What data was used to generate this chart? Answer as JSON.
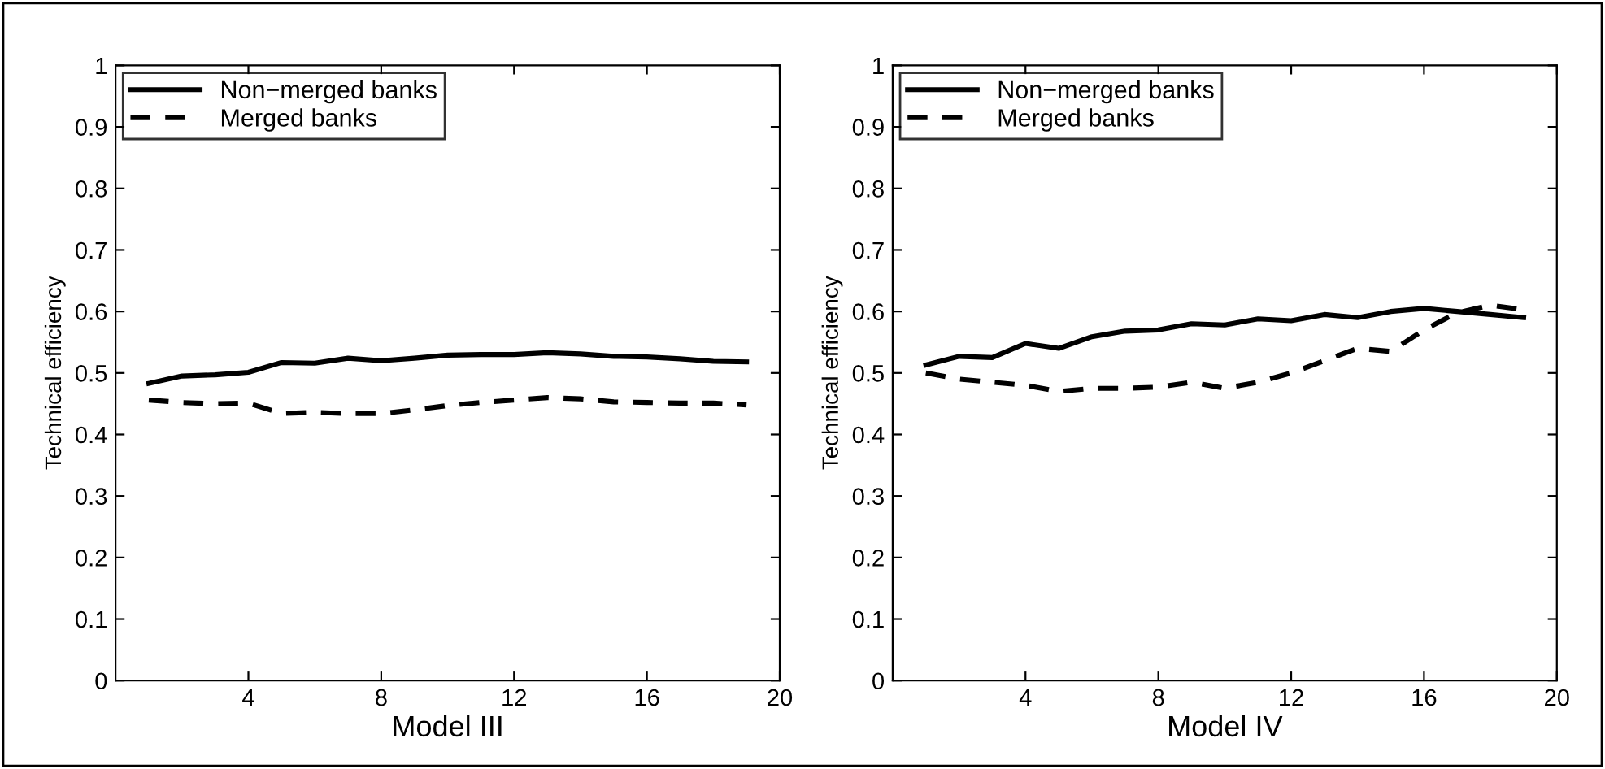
{
  "chart_data": [
    {
      "type": "line",
      "xlabel": "Model III",
      "ylabel": "Technical efficiency",
      "x": [
        1,
        2,
        3,
        4,
        5,
        6,
        7,
        8,
        9,
        10,
        11,
        12,
        13,
        14,
        15,
        16,
        17,
        18,
        19
      ],
      "xlim": [
        0,
        20
      ],
      "xticks": [
        4,
        8,
        12,
        16,
        20
      ],
      "ylim": [
        0,
        1
      ],
      "yticks": [
        0,
        0.1,
        0.2,
        0.3,
        0.4,
        0.5,
        0.6,
        0.7,
        0.8,
        0.9,
        1
      ],
      "legend": "top left",
      "grid": false,
      "series": [
        {
          "name": "Non−merged banks",
          "color": "#000000",
          "line_style": "solid",
          "values": [
            0.483,
            0.495,
            0.497,
            0.501,
            0.517,
            0.516,
            0.524,
            0.52,
            0.524,
            0.529,
            0.53,
            0.53,
            0.533,
            0.531,
            0.527,
            0.526,
            0.523,
            0.519,
            0.518
          ]
        },
        {
          "name": "Merged banks",
          "color": "#000000",
          "line_style": "dashed",
          "values": [
            0.456,
            0.452,
            0.45,
            0.451,
            0.434,
            0.436,
            0.434,
            0.434,
            0.44,
            0.447,
            0.452,
            0.456,
            0.46,
            0.458,
            0.453,
            0.452,
            0.451,
            0.451,
            0.448
          ]
        }
      ]
    },
    {
      "type": "line",
      "xlabel": "Model IV",
      "ylabel": "Technical efficiency",
      "x": [
        1,
        2,
        3,
        4,
        5,
        6,
        7,
        8,
        9,
        10,
        11,
        12,
        13,
        14,
        15,
        16,
        17,
        18,
        19
      ],
      "xlim": [
        0,
        20
      ],
      "xticks": [
        4,
        8,
        12,
        16,
        20
      ],
      "ylim": [
        0,
        1
      ],
      "yticks": [
        0,
        0.1,
        0.2,
        0.3,
        0.4,
        0.5,
        0.6,
        0.7,
        0.8,
        0.9,
        1
      ],
      "legend": "top left",
      "grid": false,
      "series": [
        {
          "name": "Non−merged banks",
          "color": "#000000",
          "line_style": "solid",
          "values": [
            0.513,
            0.527,
            0.525,
            0.548,
            0.54,
            0.559,
            0.568,
            0.57,
            0.58,
            0.578,
            0.588,
            0.585,
            0.595,
            0.59,
            0.6,
            0.605,
            0.6,
            0.595,
            0.59
          ]
        },
        {
          "name": "Merged banks",
          "color": "#000000",
          "line_style": "dashed",
          "values": [
            0.5,
            0.49,
            0.485,
            0.48,
            0.47,
            0.475,
            0.475,
            0.477,
            0.485,
            0.475,
            0.485,
            0.5,
            0.52,
            0.54,
            0.535,
            0.57,
            0.598,
            0.61,
            0.603
          ]
        }
      ]
    }
  ]
}
